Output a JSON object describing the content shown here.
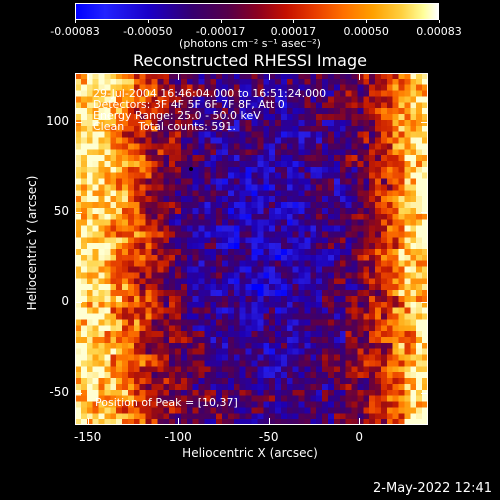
{
  "colorbar": {
    "ticks": [
      "-0.00083",
      "-0.00050",
      "-0.00017",
      "0.00017",
      "0.00050",
      "0.00083"
    ],
    "unit_label": "(photons cm⁻² s⁻¹ asec⁻²)"
  },
  "chart_data": {
    "type": "heatmap",
    "title": "Reconstructed RHESSI Image",
    "xlabel": "Heliocentric X (arcsec)",
    "ylabel": "Heliocentric Y (arcsec)",
    "xlim": [
      -157,
      38
    ],
    "ylim": [
      -68,
      127
    ],
    "color_range": [
      -0.00083,
      0.00083
    ],
    "colormap": "blue-purple-red-orange-yellow-white",
    "x_ticks": [
      "-150",
      "-100",
      "-50",
      "0"
    ],
    "y_ticks": [
      "100",
      "50",
      "0",
      "-50"
    ],
    "x_tick_values": [
      -150,
      -100,
      -50,
      0
    ],
    "y_tick_values": [
      100,
      50,
      0,
      -50
    ],
    "peak": {
      "x": 10,
      "y": 37
    },
    "marker": {
      "x": -93,
      "y": 74
    },
    "annotations": [
      "29-Jul-2004 16:46:04.000 to 16:51:24.000",
      "Detectors: 3F 4F 5F 6F 7F 8F, Att 0",
      "Energy Range: 25.0 - 50.0 keV",
      "Clean    Total counts: 591.",
      "Position of Peak = [10,37]"
    ],
    "grid": false
  },
  "datestamp": "2-May-2022 12:41"
}
